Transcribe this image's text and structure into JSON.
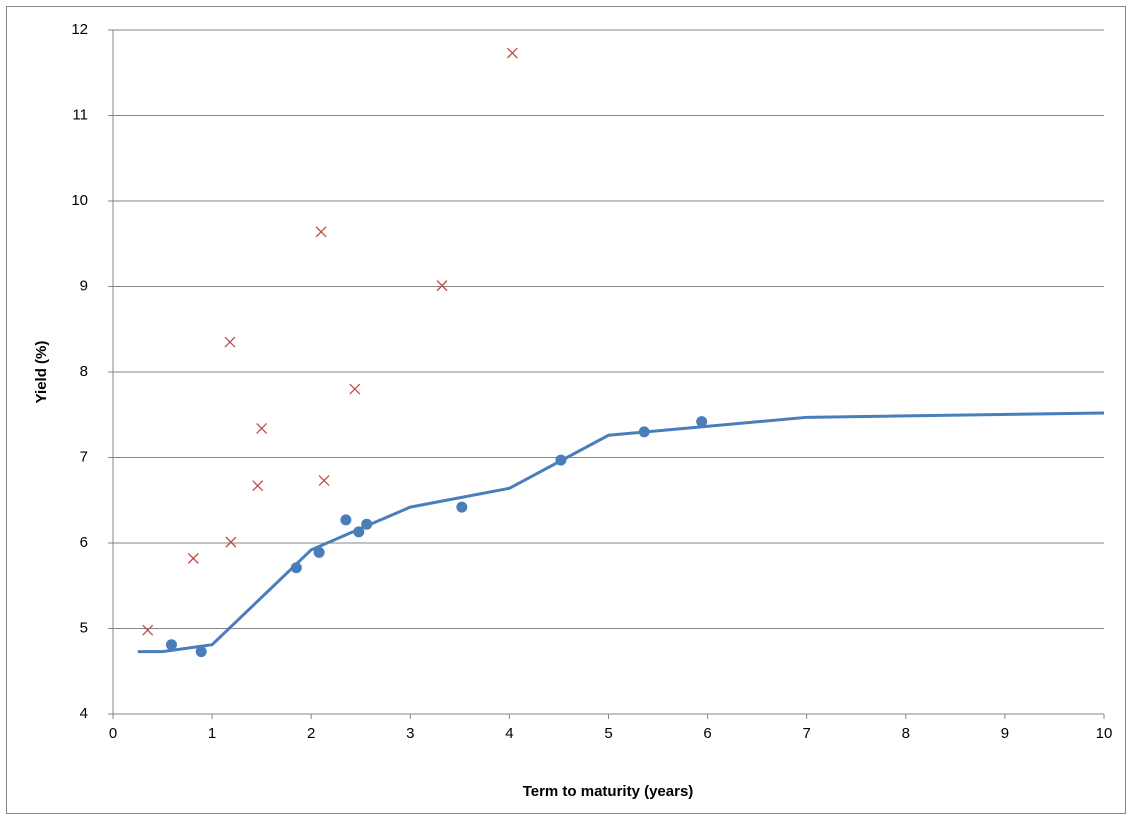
{
  "chart_data": {
    "type": "scatter",
    "x_label": "Term to maturity (years)",
    "y_label": "Yield (%)",
    "xlim": [
      0,
      10
    ],
    "xticks": [
      0,
      1,
      2,
      3,
      4,
      5,
      6,
      7,
      8,
      9,
      10
    ],
    "ylim": [
      4,
      12
    ],
    "yticks": [
      4,
      5,
      6,
      7,
      8,
      9,
      10,
      11,
      12
    ],
    "grid": true,
    "series": [
      {
        "mode": "line",
        "color": "#4a7ebb",
        "x": [
          0.25,
          0.5,
          1,
          2,
          3,
          4,
          5,
          7,
          10
        ],
        "values": [
          4.73,
          4.73,
          4.81,
          5.92,
          6.42,
          6.64,
          7.26,
          7.47,
          7.52
        ]
      },
      {
        "mode": "markers",
        "marker": "circle",
        "color": "#4a7ebb",
        "x": [
          0.59,
          0.89,
          1.85,
          2.08,
          2.35,
          2.48,
          2.56,
          3.52,
          4.52,
          5.36,
          5.94
        ],
        "values": [
          4.81,
          4.73,
          5.71,
          5.89,
          6.27,
          6.13,
          6.22,
          6.42,
          6.97,
          7.3,
          7.42
        ]
      },
      {
        "mode": "markers",
        "marker": "x",
        "color": "#be4b48",
        "x": [
          0.35,
          0.81,
          1.19,
          1.18,
          1.46,
          1.5,
          2.1,
          2.13,
          2.44,
          3.32,
          4.03
        ],
        "values": [
          4.98,
          5.82,
          6.01,
          8.35,
          6.67,
          7.34,
          9.64,
          6.73,
          7.8,
          9.01,
          11.73
        ]
      }
    ]
  }
}
